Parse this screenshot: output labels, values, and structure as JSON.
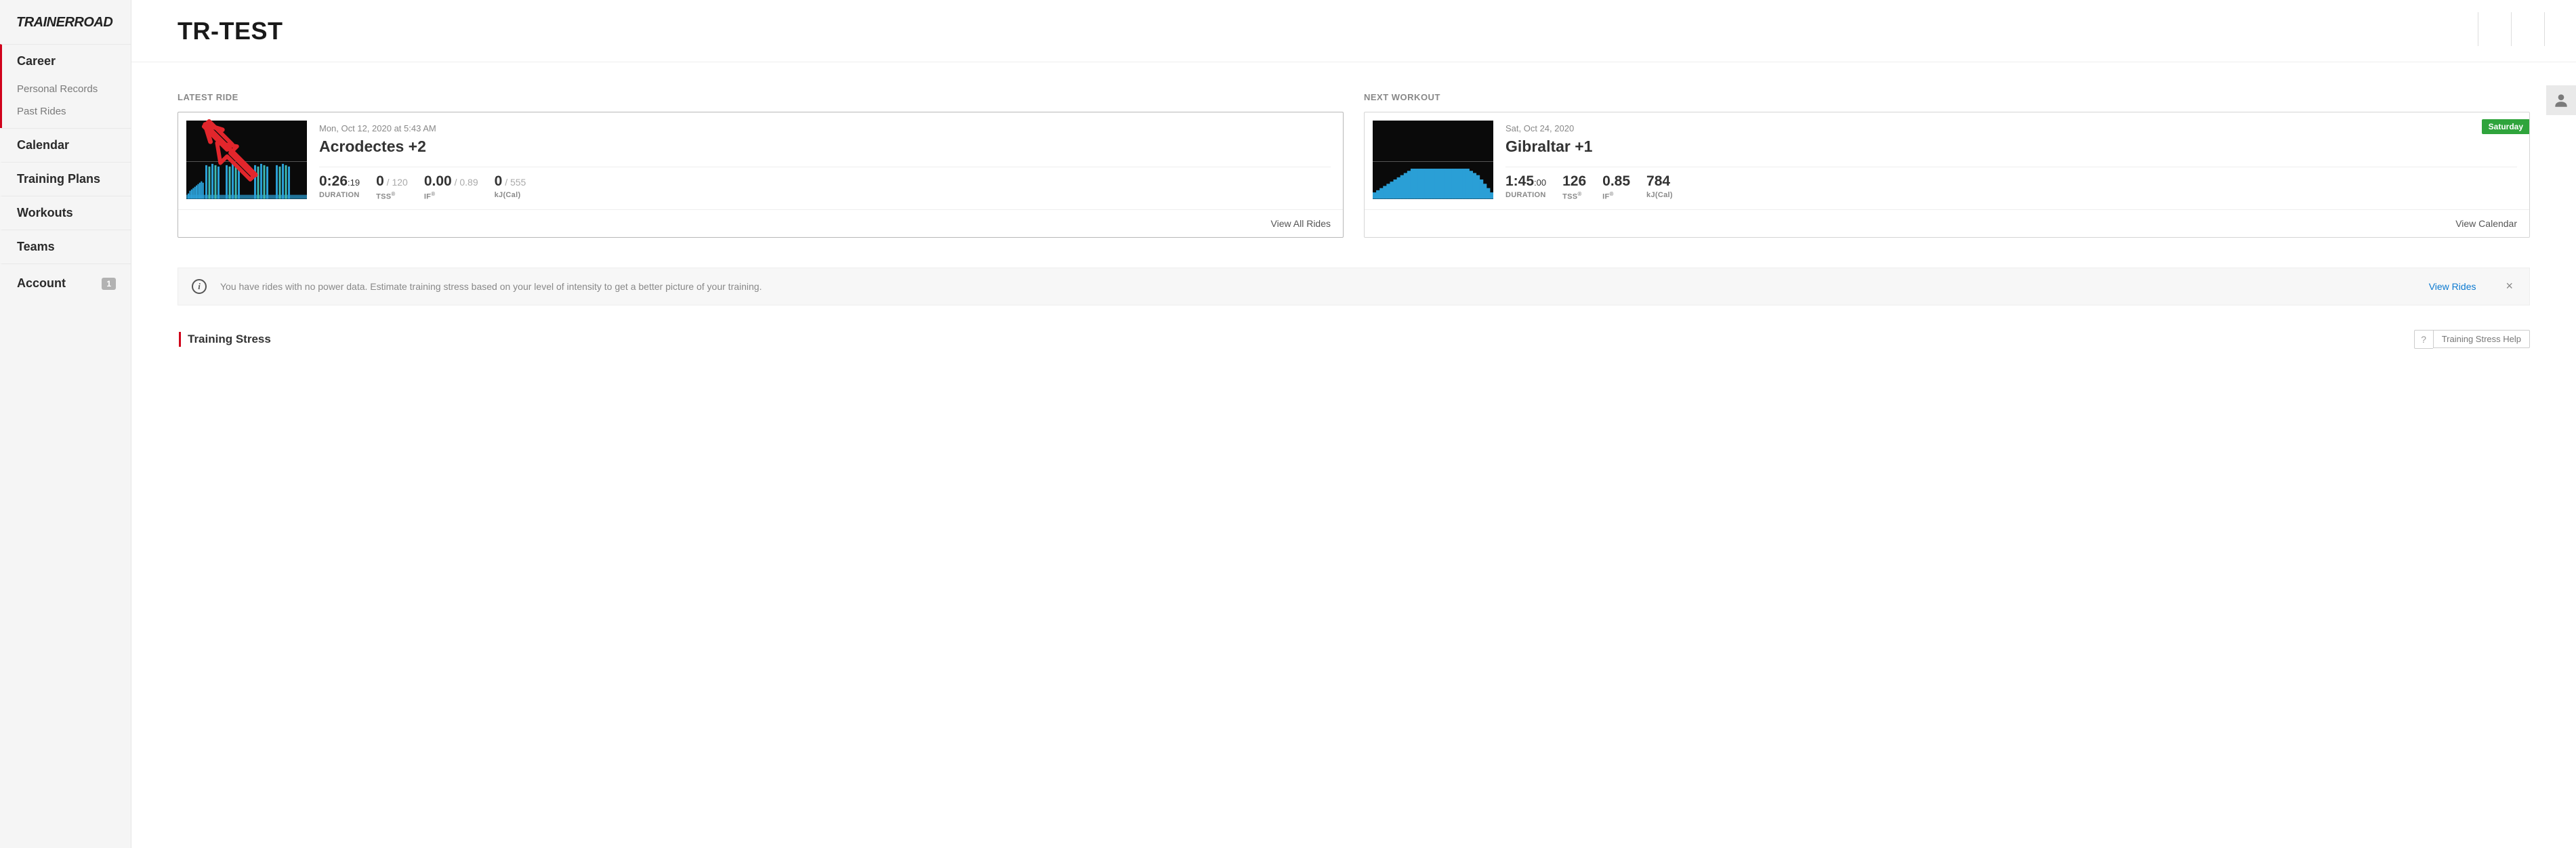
{
  "colors": {
    "accent_red": "#d0021b",
    "chart_bg": "#0a0a0a",
    "chart_blue": "#2a9fd6",
    "chart_teal": "#3fbab0",
    "badge_green": "#2fa43c",
    "link_blue": "#0b79d0",
    "sidebar_bg": "#f5f5f5",
    "badge_grey": "#b2b2b2"
  },
  "logo": "TRAINERROAD",
  "sidebar": {
    "career": {
      "label": "Career",
      "active": true
    },
    "career_sub": [
      {
        "label": "Personal Records"
      },
      {
        "label": "Past Rides"
      }
    ],
    "items": [
      {
        "label": "Calendar"
      },
      {
        "label": "Training Plans"
      },
      {
        "label": "Workouts"
      },
      {
        "label": "Teams"
      }
    ],
    "account": {
      "label": "Account",
      "badge": "1"
    }
  },
  "header": {
    "title": "TR-TEST"
  },
  "latest_ride": {
    "section_label": "LATEST RIDE",
    "date": "Mon, Oct 12, 2020 at 5:43 AM",
    "name": "Acrodectes +2",
    "duration": {
      "main": "0:26",
      "sec": ":19",
      "label": "DURATION"
    },
    "tss": {
      "val": "0",
      "of": " / 120",
      "label": "TSS"
    },
    "if": {
      "val": "0.00",
      "of": " / 0.89",
      "label": "IF"
    },
    "kj": {
      "val": "0",
      "of": " / 555",
      "label": "kJ(Cal)"
    },
    "footer_link": "View All Rides",
    "chart": {
      "type": "interval-bars",
      "base_heights": [
        8,
        12,
        14,
        16,
        18,
        20,
        22,
        24,
        26,
        24
      ],
      "base_color": "#2a9fd6",
      "cluster_x": [
        28,
        58,
        100,
        132
      ],
      "cluster_bar_heights": [
        50,
        48,
        52,
        50,
        48
      ],
      "cluster_color": "#2a9fd6",
      "cluster_alt_color": "#3fbab0"
    }
  },
  "next_workout": {
    "section_label": "NEXT WORKOUT",
    "date": "Sat, Oct 24, 2020",
    "name": "Gibraltar +1",
    "day_badge": "Saturday",
    "duration": {
      "main": "1:45",
      "sec": ":00",
      "label": "DURATION"
    },
    "tss": {
      "val": "126",
      "label": "TSS"
    },
    "if": {
      "val": "0.85",
      "label": "IF"
    },
    "kj": {
      "val": "784",
      "label": "kJ(Cal)"
    },
    "footer_link": "View Calendar",
    "chart": {
      "type": "steady-profile",
      "heights": [
        6,
        8,
        10,
        12,
        14,
        16,
        18,
        20,
        22,
        24,
        26,
        28,
        28,
        28,
        28,
        28,
        28,
        28,
        28,
        28,
        28,
        28,
        28,
        28,
        28,
        28,
        28,
        28,
        26,
        24,
        22,
        18,
        14,
        10,
        6
      ],
      "color": "#2a9fd6"
    }
  },
  "info_banner": {
    "text": "You have rides with no power data. Estimate training stress based on your level of intensity to get a better picture of your training.",
    "link": "View Rides",
    "close": "×"
  },
  "training_stress": {
    "title": "Training Stress",
    "help_label": "Training Stress Help"
  }
}
